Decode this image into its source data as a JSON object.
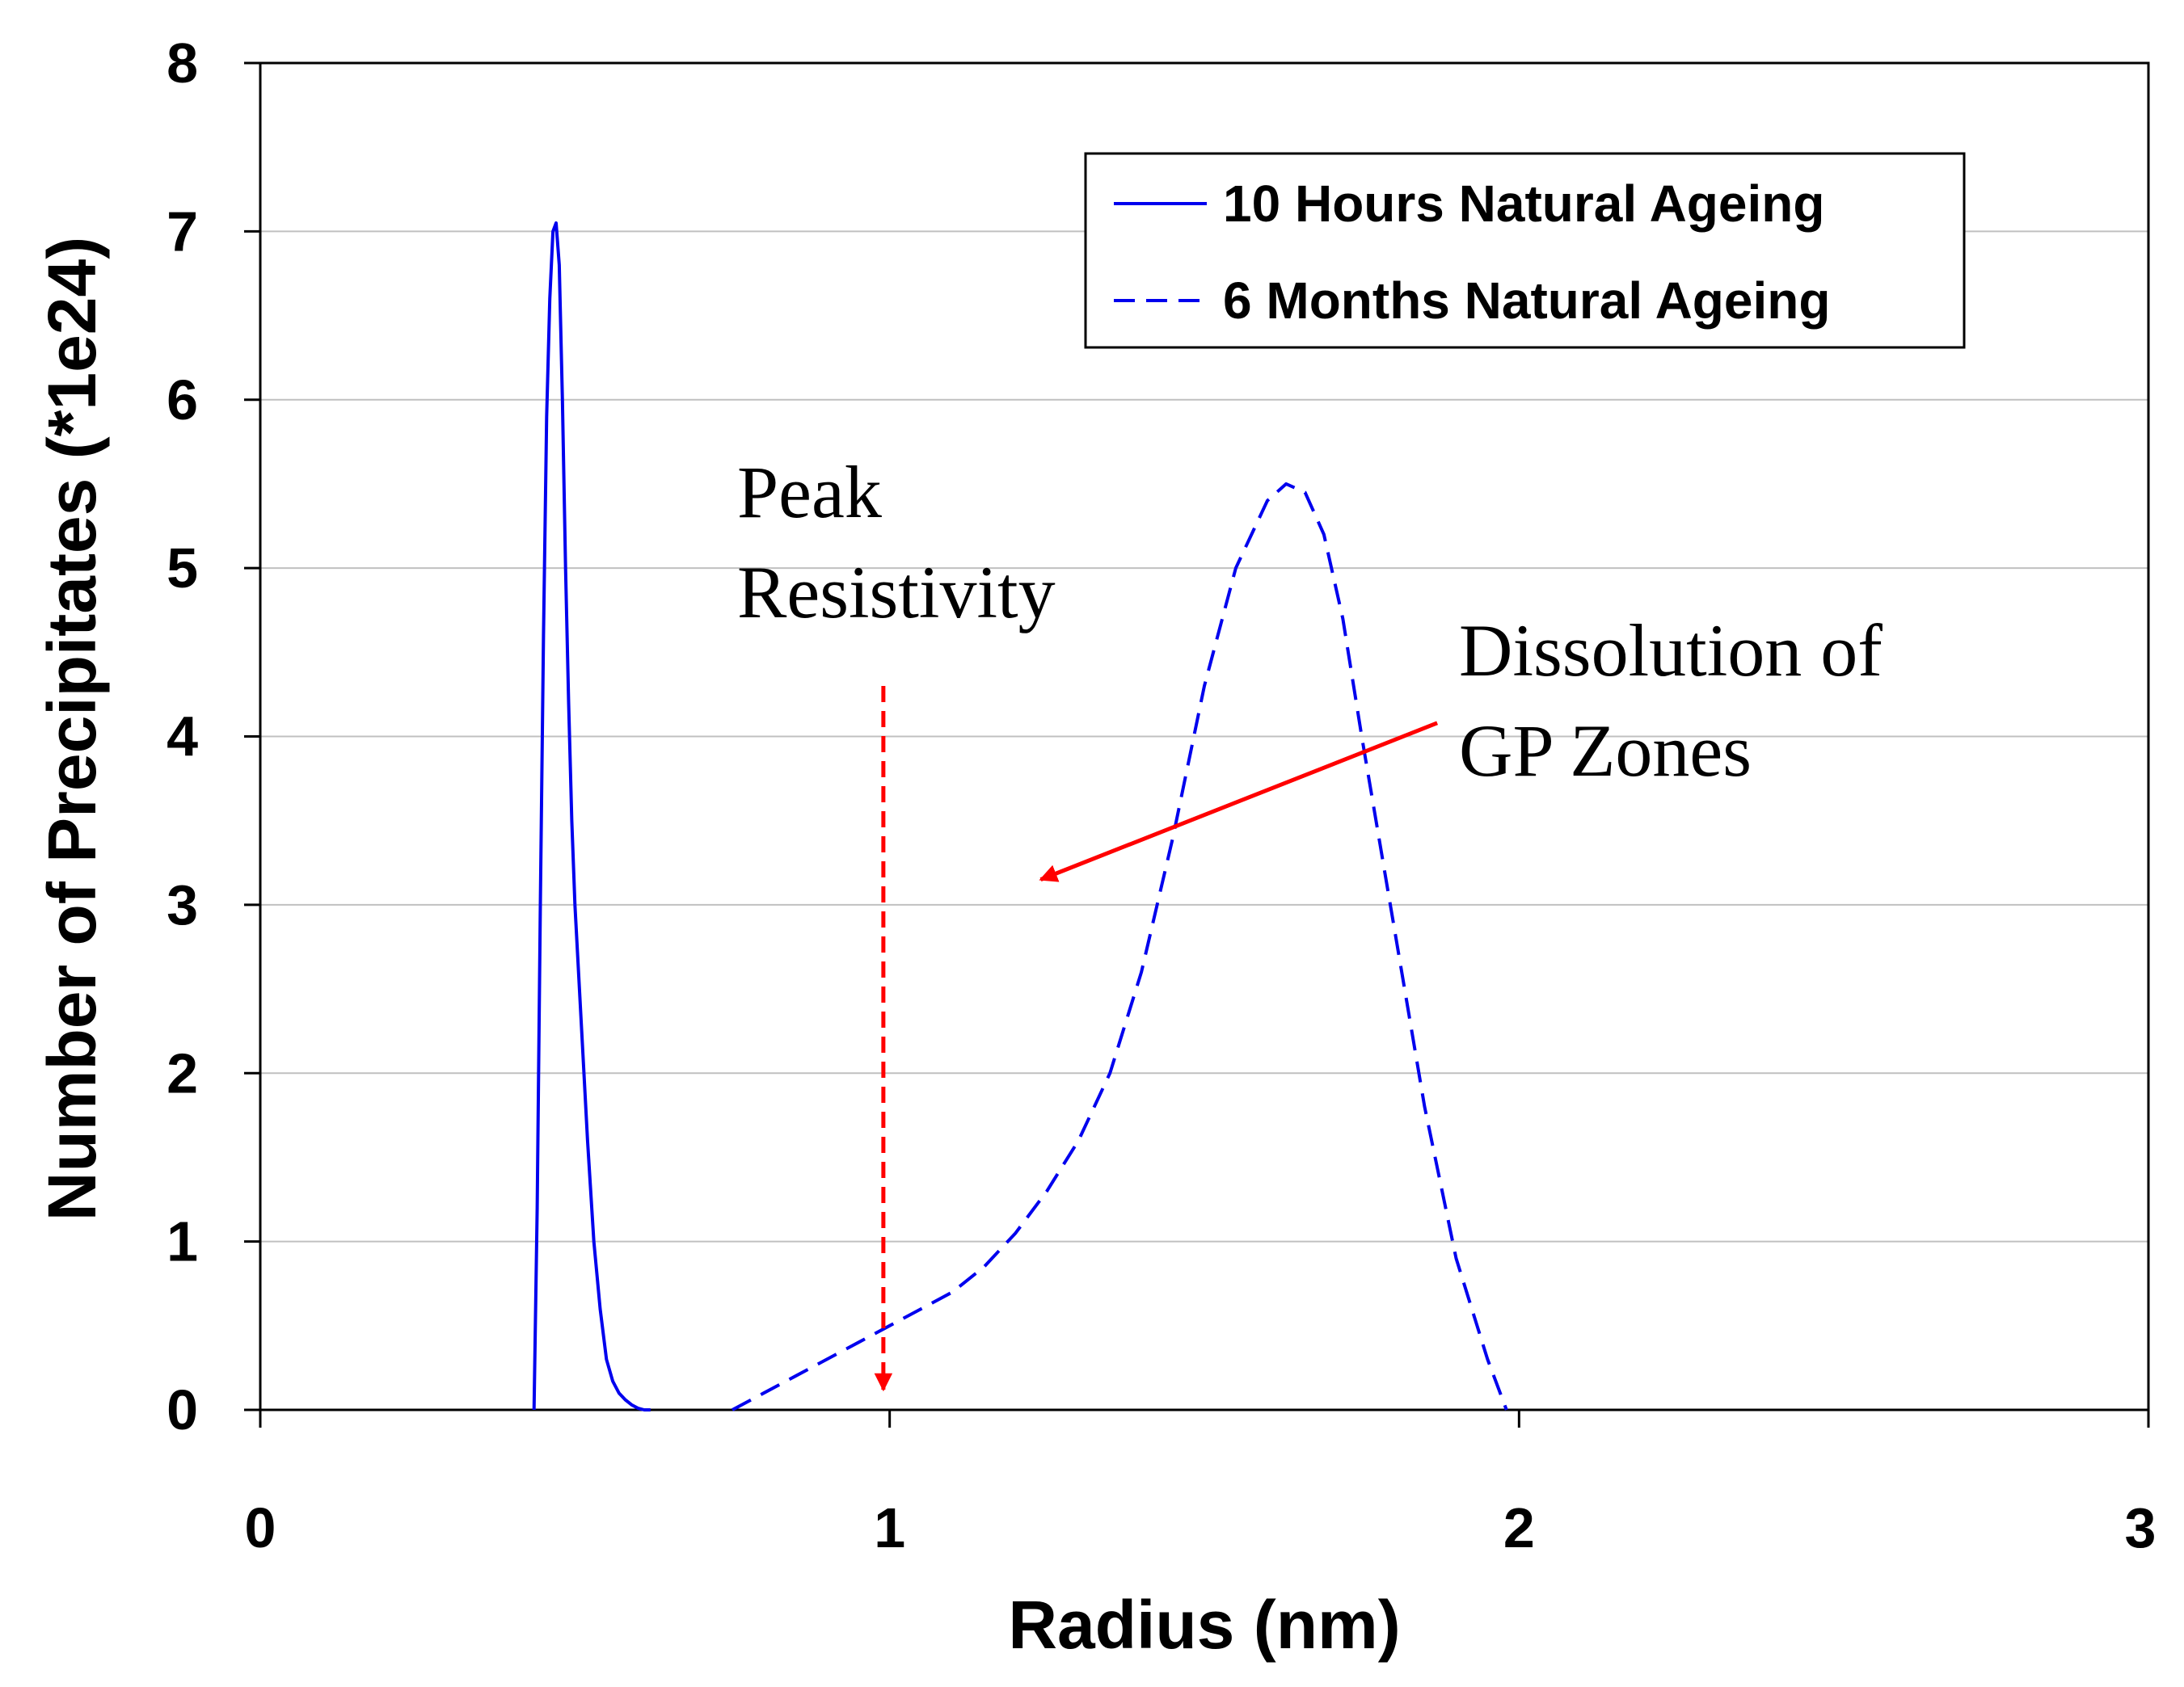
{
  "chart_data": {
    "type": "line",
    "title": "",
    "xlabel": "Radius (nm)",
    "ylabel": "Number of Precipitates (*1e24)",
    "xlim": [
      0,
      3
    ],
    "ylim": [
      0,
      8
    ],
    "xticks": [
      0,
      1,
      2,
      3
    ],
    "yticks": [
      0,
      1,
      2,
      3,
      4,
      5,
      6,
      7,
      8
    ],
    "grid": "horizontal",
    "legend_position": "top-right",
    "series": [
      {
        "name": "10 Hours Natural Ageing",
        "style": "solid",
        "color": "#0000ee",
        "x": [
          0.435,
          0.44,
          0.445,
          0.45,
          0.455,
          0.46,
          0.465,
          0.47,
          0.475,
          0.48,
          0.485,
          0.49,
          0.495,
          0.5,
          0.51,
          0.52,
          0.53,
          0.54,
          0.55,
          0.56,
          0.57,
          0.58,
          0.59,
          0.6,
          0.61,
          0.62
        ],
        "y": [
          0.0,
          1.2,
          3.0,
          4.6,
          5.9,
          6.6,
          7.0,
          7.05,
          6.8,
          6.0,
          5.0,
          4.2,
          3.5,
          3.0,
          2.3,
          1.6,
          1.0,
          0.6,
          0.3,
          0.17,
          0.1,
          0.06,
          0.03,
          0.01,
          0.0,
          0.0
        ]
      },
      {
        "name": "6 Months Natural Ageing",
        "style": "dashed",
        "color": "#0000ee",
        "x": [
          0.75,
          0.8,
          0.85,
          0.9,
          0.95,
          1.0,
          1.05,
          1.1,
          1.15,
          1.2,
          1.25,
          1.3,
          1.35,
          1.4,
          1.45,
          1.5,
          1.55,
          1.6,
          1.63,
          1.66,
          1.69,
          1.72,
          1.75,
          1.8,
          1.85,
          1.9,
          1.95,
          1.98
        ],
        "y": [
          0.0,
          0.1,
          0.2,
          0.3,
          0.4,
          0.5,
          0.6,
          0.7,
          0.85,
          1.05,
          1.3,
          1.6,
          2.0,
          2.6,
          3.4,
          4.3,
          5.0,
          5.4,
          5.5,
          5.45,
          5.2,
          4.7,
          4.0,
          2.9,
          1.8,
          0.9,
          0.3,
          0.0
        ]
      }
    ],
    "annotations": [
      {
        "id": "peak",
        "lines": [
          "Peak",
          "Resistivity"
        ],
        "arrow": {
          "style": "dashed",
          "color": "#ff0000",
          "from": [
            0.99,
            4.3
          ],
          "to": [
            0.99,
            0.12
          ]
        }
      },
      {
        "id": "dissolution",
        "lines": [
          "Dissolution of",
          "GP Zones"
        ],
        "arrow": {
          "style": "solid",
          "color": "#ff0000",
          "from": [
            1.87,
            4.08
          ],
          "to": [
            1.24,
            3.15
          ]
        }
      }
    ]
  },
  "colors": {
    "series": "#0000ee",
    "arrow": "#ff0000",
    "grid": "#c0c0c0",
    "axis": "#000000"
  }
}
